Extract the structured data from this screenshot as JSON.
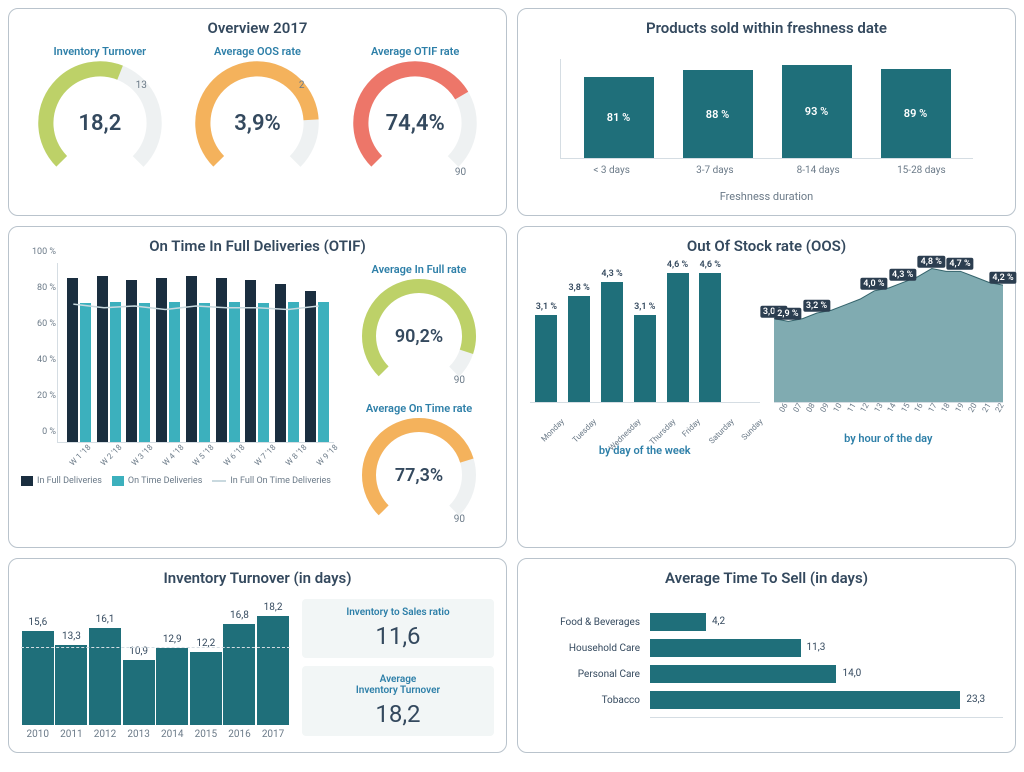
{
  "colors": {
    "teal": "#1f6f7a",
    "teal_light": "#3cb0bd",
    "teal_area": "#6a9ca3",
    "dark": "#1a2e3f",
    "green": "#bdd168",
    "orange": "#f4b25c",
    "red": "#ed7669",
    "track": "#eef1f2",
    "text": "#34495e",
    "link": "#2d7fa8",
    "grid": "#d5dde3"
  },
  "overview": {
    "title": "Overview 2017",
    "gauges": [
      {
        "label": "Inventory Turnover",
        "value": "18,2",
        "pct": 58,
        "color": "#bdd168",
        "top_tick": "13",
        "bot_tick": ""
      },
      {
        "label": "Average OOS rate",
        "value": "3,9%",
        "pct": 82,
        "color": "#f4b25c",
        "top_tick": "2",
        "bot_tick": ""
      },
      {
        "label": "Average OTIF rate",
        "value": "74,4%",
        "pct": 72,
        "color": "#ed7669",
        "top_tick": "",
        "bot_tick": "90"
      }
    ]
  },
  "freshness": {
    "title": "Products sold within freshness date",
    "axis_label": "Freshness duration",
    "max": 100,
    "bar_color": "#1f6f7a",
    "bars": [
      {
        "cat": "< 3 days",
        "val": 81,
        "label": "81 %"
      },
      {
        "cat": "3-7 days",
        "val": 88,
        "label": "88 %"
      },
      {
        "cat": "8-14 days",
        "val": 93,
        "label": "93 %"
      },
      {
        "cat": "15-28 days",
        "val": 89,
        "label": "89 %"
      }
    ]
  },
  "otif": {
    "title": "On Time In Full Deliveries (OTIF)",
    "yticks": [
      0,
      20,
      40,
      60,
      80,
      100
    ],
    "col_dark": "#1a2e3f",
    "col_teal": "#3cb0bd",
    "col_line": "#c9d9df",
    "weeks": [
      "W 1 '18",
      "W 2 '18",
      "W 3 '18",
      "W 4 '18",
      "W 5 '18",
      "W 6 '18",
      "W 7 '18",
      "W 8 '18",
      "W 9 '18"
    ],
    "in_full": [
      91,
      92,
      90,
      91,
      92,
      91,
      90,
      88,
      84
    ],
    "on_time": [
      77,
      78,
      77,
      78,
      77,
      78,
      77,
      78,
      78
    ],
    "combo": [
      77,
      75,
      76,
      74,
      76,
      75,
      75,
      74,
      76
    ],
    "legend": [
      {
        "type": "sw",
        "color": "#1a2e3f",
        "text": "In Full Deliveries"
      },
      {
        "type": "sw",
        "color": "#3cb0bd",
        "text": "On Time Deliveries"
      },
      {
        "type": "line",
        "color": "#c9d9df",
        "text": "In Full On Time Deliveries"
      }
    ],
    "gauges": [
      {
        "label": "Average In Full rate",
        "value": "90,2%",
        "pct": 90,
        "color": "#bdd168",
        "bot_tick": "90"
      },
      {
        "label": "Average On Time rate",
        "value": "77,3%",
        "pct": 77,
        "color": "#f4b25c",
        "bot_tick": "90"
      }
    ]
  },
  "oos": {
    "title": "Out Of Stock rate (OOS)",
    "day_caption": "by day of the week",
    "hour_caption": "by hour of the day",
    "bar_color": "#1f6f7a",
    "area_color": "#6a9ca3",
    "dow_max": 5.0,
    "dow": [
      {
        "label": "Monday",
        "val": 3.1,
        "txt": "3,1 %"
      },
      {
        "label": "Tuesday",
        "val": 3.8,
        "txt": "3,8 %"
      },
      {
        "label": "Wednesday",
        "val": 4.3,
        "txt": "4,3 %"
      },
      {
        "label": "Thursday",
        "val": 3.1,
        "txt": "3,1 %"
      },
      {
        "label": "Friday",
        "val": 4.6,
        "txt": "4,6 %"
      },
      {
        "label": "Saturday",
        "val": 4.6,
        "txt": "4,6 %"
      },
      {
        "label": "Sunday",
        "val": 0,
        "txt": ""
      }
    ],
    "hours": [
      "06",
      "07",
      "08",
      "09",
      "10",
      "11",
      "12",
      "13",
      "14",
      "15",
      "16",
      "17",
      "18",
      "19",
      "20",
      "21",
      "22"
    ],
    "hour_max": 5.0,
    "hour_vals": [
      3.0,
      2.9,
      3.0,
      3.2,
      3.3,
      3.5,
      3.7,
      4.0,
      4.1,
      4.3,
      4.5,
      4.8,
      4.7,
      4.7,
      4.5,
      4.3,
      4.2
    ],
    "hour_labels": [
      {
        "i": 0,
        "txt": "3,0 %"
      },
      {
        "i": 1,
        "txt": "2,9 %"
      },
      {
        "i": 3,
        "txt": "3,2 %"
      },
      {
        "i": 7,
        "txt": "4,0 %"
      },
      {
        "i": 9,
        "txt": "4,3 %"
      },
      {
        "i": 11,
        "txt": "4,8 %"
      },
      {
        "i": 13,
        "txt": "4,7 %"
      },
      {
        "i": 16,
        "txt": "4,2 %"
      }
    ]
  },
  "turnover": {
    "title": "Inventory Turnover (in days)",
    "bar_color": "#1f6f7a",
    "max": 20,
    "target": 13,
    "years": [
      {
        "y": "2010",
        "v": 15.6,
        "t": "15,6"
      },
      {
        "y": "2011",
        "v": 13.3,
        "t": "13,3"
      },
      {
        "y": "2012",
        "v": 16.1,
        "t": "16,1"
      },
      {
        "y": "2013",
        "v": 10.9,
        "t": "10,9"
      },
      {
        "y": "2014",
        "v": 12.9,
        "t": "12,9"
      },
      {
        "y": "2015",
        "v": 12.2,
        "t": "12,2"
      },
      {
        "y": "2016",
        "v": 16.8,
        "t": "16,8"
      },
      {
        "y": "2017",
        "v": 18.2,
        "t": "18,2"
      }
    ],
    "kpis": [
      {
        "label": "Inventory to Sales ratio",
        "value": "11,6"
      },
      {
        "label": "Average\nInventory Turnover",
        "value": "18,2"
      }
    ]
  },
  "atts": {
    "title": "Average Time To Sell (in days)",
    "bar_color": "#1f6f7a",
    "max": 25,
    "rows": [
      {
        "label": "Food & Beverages",
        "v": 4.2,
        "t": "4,2"
      },
      {
        "label": "Household Care",
        "v": 11.3,
        "t": "11,3"
      },
      {
        "label": "Personal Care",
        "v": 14.0,
        "t": "14,0"
      },
      {
        "label": "Tobacco",
        "v": 23.3,
        "t": "23,3"
      }
    ]
  }
}
